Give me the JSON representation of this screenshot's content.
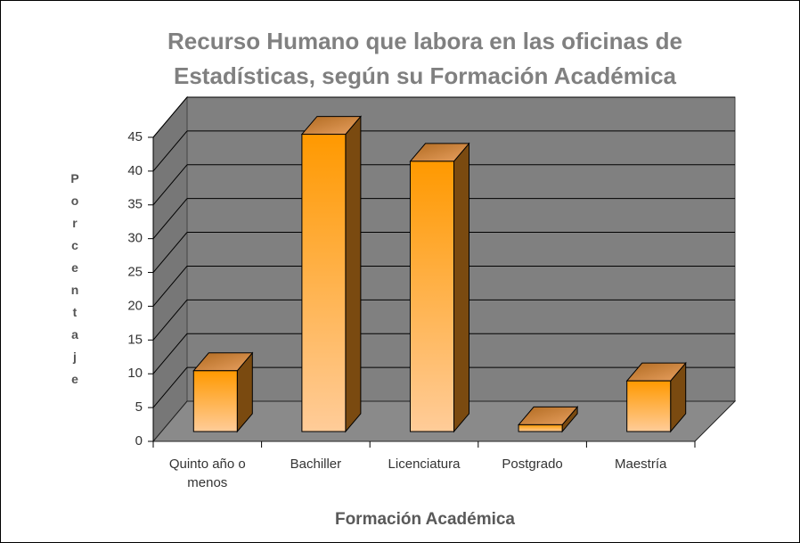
{
  "chart_data": {
    "type": "bar3d",
    "title": [
      "Recurso Humano que labora en las oficinas de",
      "Estadísticas, según su Formación Académica"
    ],
    "x_label": "Formación Académica",
    "y_label": "Porcentaje",
    "categories": [
      "Quinto año o menos",
      "Bachiller",
      "Licenciatura",
      "Postgrado",
      "Maestría"
    ],
    "values": [
      9,
      44,
      40,
      1,
      7.5
    ],
    "color": "#ff9900",
    "ylim": [
      0,
      45
    ],
    "yticks": [
      0,
      5,
      10,
      15,
      20,
      25,
      30,
      35,
      40,
      45
    ],
    "grid": true
  }
}
